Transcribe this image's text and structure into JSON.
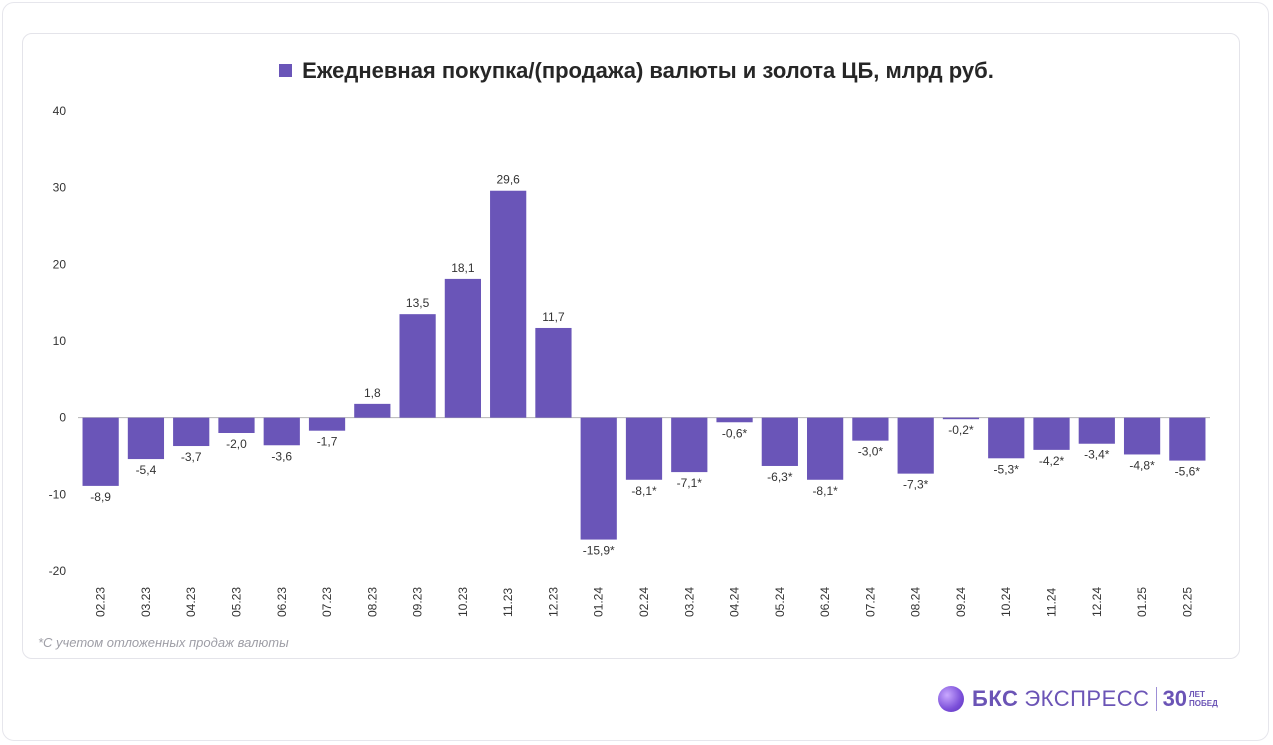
{
  "title": "Ежедневная покупка/(продажа) валюты и золота ЦБ, млрд руб.",
  "footnote": "*С учетом отложенных продаж валюты",
  "brand": {
    "name": "БКС",
    "name2": "ЭКСПРЕСС",
    "anniversary_number": "30",
    "anniversary_line1": "ЛЕТ",
    "anniversary_line2": "ПОБЕД"
  },
  "colors": {
    "bar": "#6a55b8",
    "brand": "#6b54b6"
  },
  "chart_data": {
    "type": "bar",
    "title": "Ежедневная покупка/(продажа) валюты и золота ЦБ, млрд руб.",
    "legend": {
      "position": "top-center",
      "entries": [
        "Ежедневная покупка/(продажа) валюты и золота ЦБ, млрд руб."
      ]
    },
    "grid": false,
    "ylim": [
      -20,
      40
    ],
    "yticks": [
      -20,
      -10,
      0,
      10,
      20,
      30,
      40
    ],
    "categories": [
      "02.23",
      "03.23",
      "04.23",
      "05.23",
      "06.23",
      "07.23",
      "08.23",
      "09.23",
      "10.23",
      "11.23",
      "12.23",
      "01.24",
      "02.24",
      "03.24",
      "04.24",
      "05.24",
      "06.24",
      "07.24",
      "08.24",
      "09.24",
      "10.24",
      "11.24",
      "12.24",
      "01.25",
      "02.25"
    ],
    "series": [
      {
        "name": "Ежедневная покупка/(продажа) валюты и золота ЦБ, млрд руб.",
        "values": [
          -8.9,
          -5.4,
          -3.7,
          -2.0,
          -3.6,
          -1.7,
          1.8,
          13.5,
          18.1,
          29.6,
          11.7,
          -15.9,
          -8.1,
          -7.1,
          -0.6,
          -6.3,
          -8.1,
          -3.0,
          -7.3,
          -0.2,
          -5.3,
          -4.2,
          -3.4,
          -4.8,
          -5.6
        ],
        "labels": [
          "-8,9",
          "-5,4",
          "-3,7",
          "-2,0",
          "-3,6",
          "-1,7",
          "1,8",
          "13,5",
          "18,1",
          "29,6",
          "11,7",
          "-15,9*",
          "-8,1*",
          "-7,1*",
          "-0,6*",
          "-6,3*",
          "-8,1*",
          "-3,0*",
          "-7,3*",
          "-0,2*",
          "-5,3*",
          "-4,2*",
          "-3,4*",
          "-4,8*",
          "-5,6*"
        ]
      }
    ]
  }
}
